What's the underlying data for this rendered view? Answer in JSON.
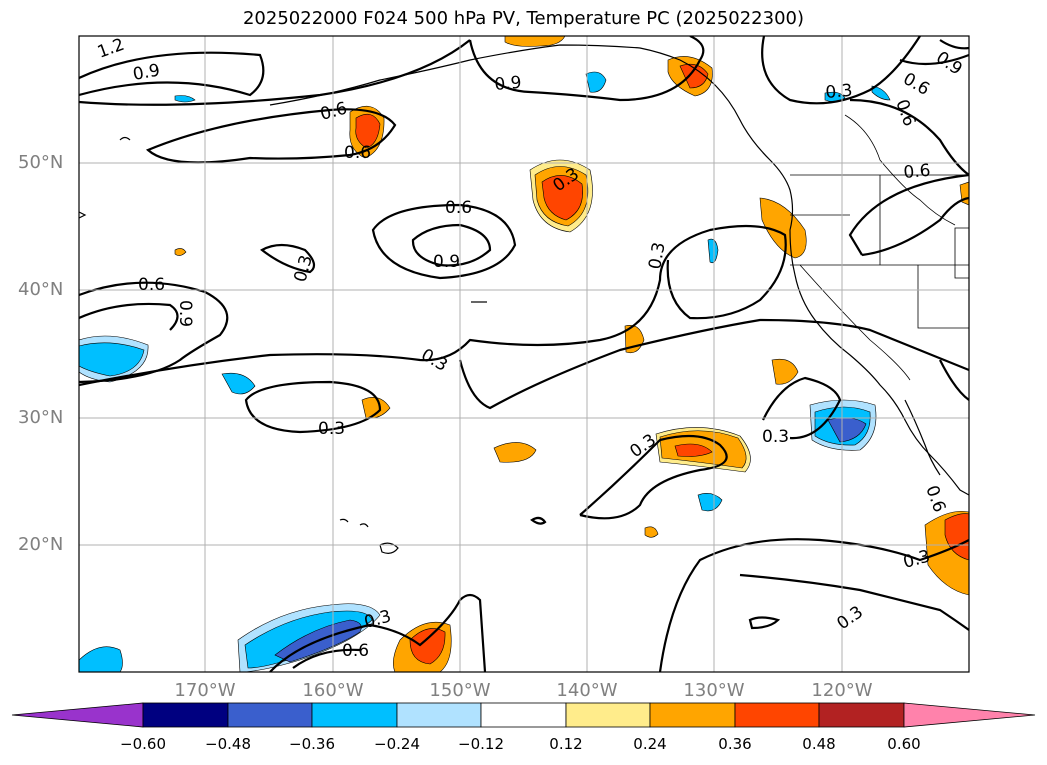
{
  "title": "2025022000 F024 500 hPa PV, Temperature PC (2025022300)",
  "lat_labels": [
    "50°N",
    "40°N",
    "30°N",
    "20°N"
  ],
  "lon_labels": [
    "170°W",
    "160°W",
    "150°W",
    "140°W",
    "130°W",
    "120°W"
  ],
  "colorbar": {
    "ticks": [
      "−0.60",
      "−0.48",
      "−0.36",
      "−0.24",
      "−0.12",
      "0.12",
      "0.24",
      "0.36",
      "0.48",
      "0.60"
    ],
    "colors": [
      "#9933cc",
      "#000080",
      "#3a5fcd",
      "#00bfff",
      "#b0e2ff",
      "#ffffff",
      "#ffec8b",
      "#ffa500",
      "#ff4500",
      "#b22222",
      "#ff82ab"
    ]
  },
  "contour_labels": [
    "1.2",
    "0.9",
    "0.6",
    "0.6",
    "0.6",
    "0.9",
    "0.9",
    "0.3",
    "0.6",
    "0.9",
    "0.3",
    "0.6",
    "0.3",
    "0.3",
    "0.3",
    "0.3",
    "0.3",
    "0.6",
    "0.3",
    "0.3",
    "0.6",
    "0.9",
    "0.3",
    "0.6",
    "0.3",
    "0.6"
  ]
}
